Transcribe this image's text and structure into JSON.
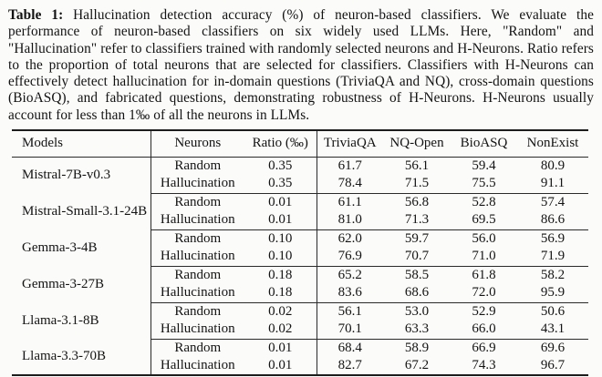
{
  "caption": {
    "label": "Table 1:",
    "text": " Hallucination detection accuracy (%) of neuron-based classifiers. We evaluate the performance of neuron-based classifiers on six widely used LLMs. Here, \"Random\" and \"Hallucination\" refer to classifiers trained with randomly selected neurons and H-Neurons. Ratio refers to the proportion of total neurons that are selected for classifiers. Classifiers with H-Neurons can effectively detect hallucination for in-domain questions (TriviaQA and NQ), cross-domain questions (BioASQ), and fabricated questions, demonstrating robustness of H-Neurons. H-Neurons usually account for less than 1‰ of all the neurons in LLMs."
  },
  "table": {
    "headers": [
      "Models",
      "Neurons",
      "Ratio (‰)",
      "TriviaQA",
      "NQ-Open",
      "BioASQ",
      "NonExist"
    ],
    "column_keys": [
      "neurons",
      "ratio",
      "triviaqa",
      "nq_open",
      "bioasq",
      "nonexist"
    ],
    "groups": [
      {
        "model": "Mistral-7B-v0.3",
        "rows": [
          {
            "neurons": "Random",
            "ratio": "0.35",
            "triviaqa": "61.7",
            "nq_open": "56.1",
            "bioasq": "59.4",
            "nonexist": "80.9"
          },
          {
            "neurons": "Hallucination",
            "ratio": "0.35",
            "triviaqa": "78.4",
            "nq_open": "71.5",
            "bioasq": "75.5",
            "nonexist": "91.1"
          }
        ]
      },
      {
        "model": "Mistral-Small-3.1-24B",
        "rows": [
          {
            "neurons": "Random",
            "ratio": "0.01",
            "triviaqa": "61.1",
            "nq_open": "56.8",
            "bioasq": "52.8",
            "nonexist": "57.4"
          },
          {
            "neurons": "Hallucination",
            "ratio": "0.01",
            "triviaqa": "81.0",
            "nq_open": "71.3",
            "bioasq": "69.5",
            "nonexist": "86.6"
          }
        ]
      },
      {
        "model": "Gemma-3-4B",
        "rows": [
          {
            "neurons": "Random",
            "ratio": "0.10",
            "triviaqa": "62.0",
            "nq_open": "59.7",
            "bioasq": "56.0",
            "nonexist": "56.9"
          },
          {
            "neurons": "Hallucination",
            "ratio": "0.10",
            "triviaqa": "76.9",
            "nq_open": "70.7",
            "bioasq": "71.0",
            "nonexist": "71.9"
          }
        ]
      },
      {
        "model": "Gemma-3-27B",
        "rows": [
          {
            "neurons": "Random",
            "ratio": "0.18",
            "triviaqa": "65.2",
            "nq_open": "58.5",
            "bioasq": "61.8",
            "nonexist": "58.2"
          },
          {
            "neurons": "Hallucination",
            "ratio": "0.18",
            "triviaqa": "83.6",
            "nq_open": "68.6",
            "bioasq": "72.0",
            "nonexist": "95.9"
          }
        ]
      },
      {
        "model": "Llama-3.1-8B",
        "rows": [
          {
            "neurons": "Random",
            "ratio": "0.02",
            "triviaqa": "56.1",
            "nq_open": "53.0",
            "bioasq": "52.9",
            "nonexist": "50.6"
          },
          {
            "neurons": "Hallucination",
            "ratio": "0.02",
            "triviaqa": "70.1",
            "nq_open": "63.3",
            "bioasq": "66.0",
            "nonexist": "43.1"
          }
        ]
      },
      {
        "model": "Llama-3.3-70B",
        "rows": [
          {
            "neurons": "Random",
            "ratio": "0.01",
            "triviaqa": "68.4",
            "nq_open": "58.9",
            "bioasq": "66.9",
            "nonexist": "69.6"
          },
          {
            "neurons": "Hallucination",
            "ratio": "0.01",
            "triviaqa": "82.7",
            "nq_open": "67.2",
            "bioasq": "74.3",
            "nonexist": "96.7"
          }
        ]
      }
    ]
  }
}
